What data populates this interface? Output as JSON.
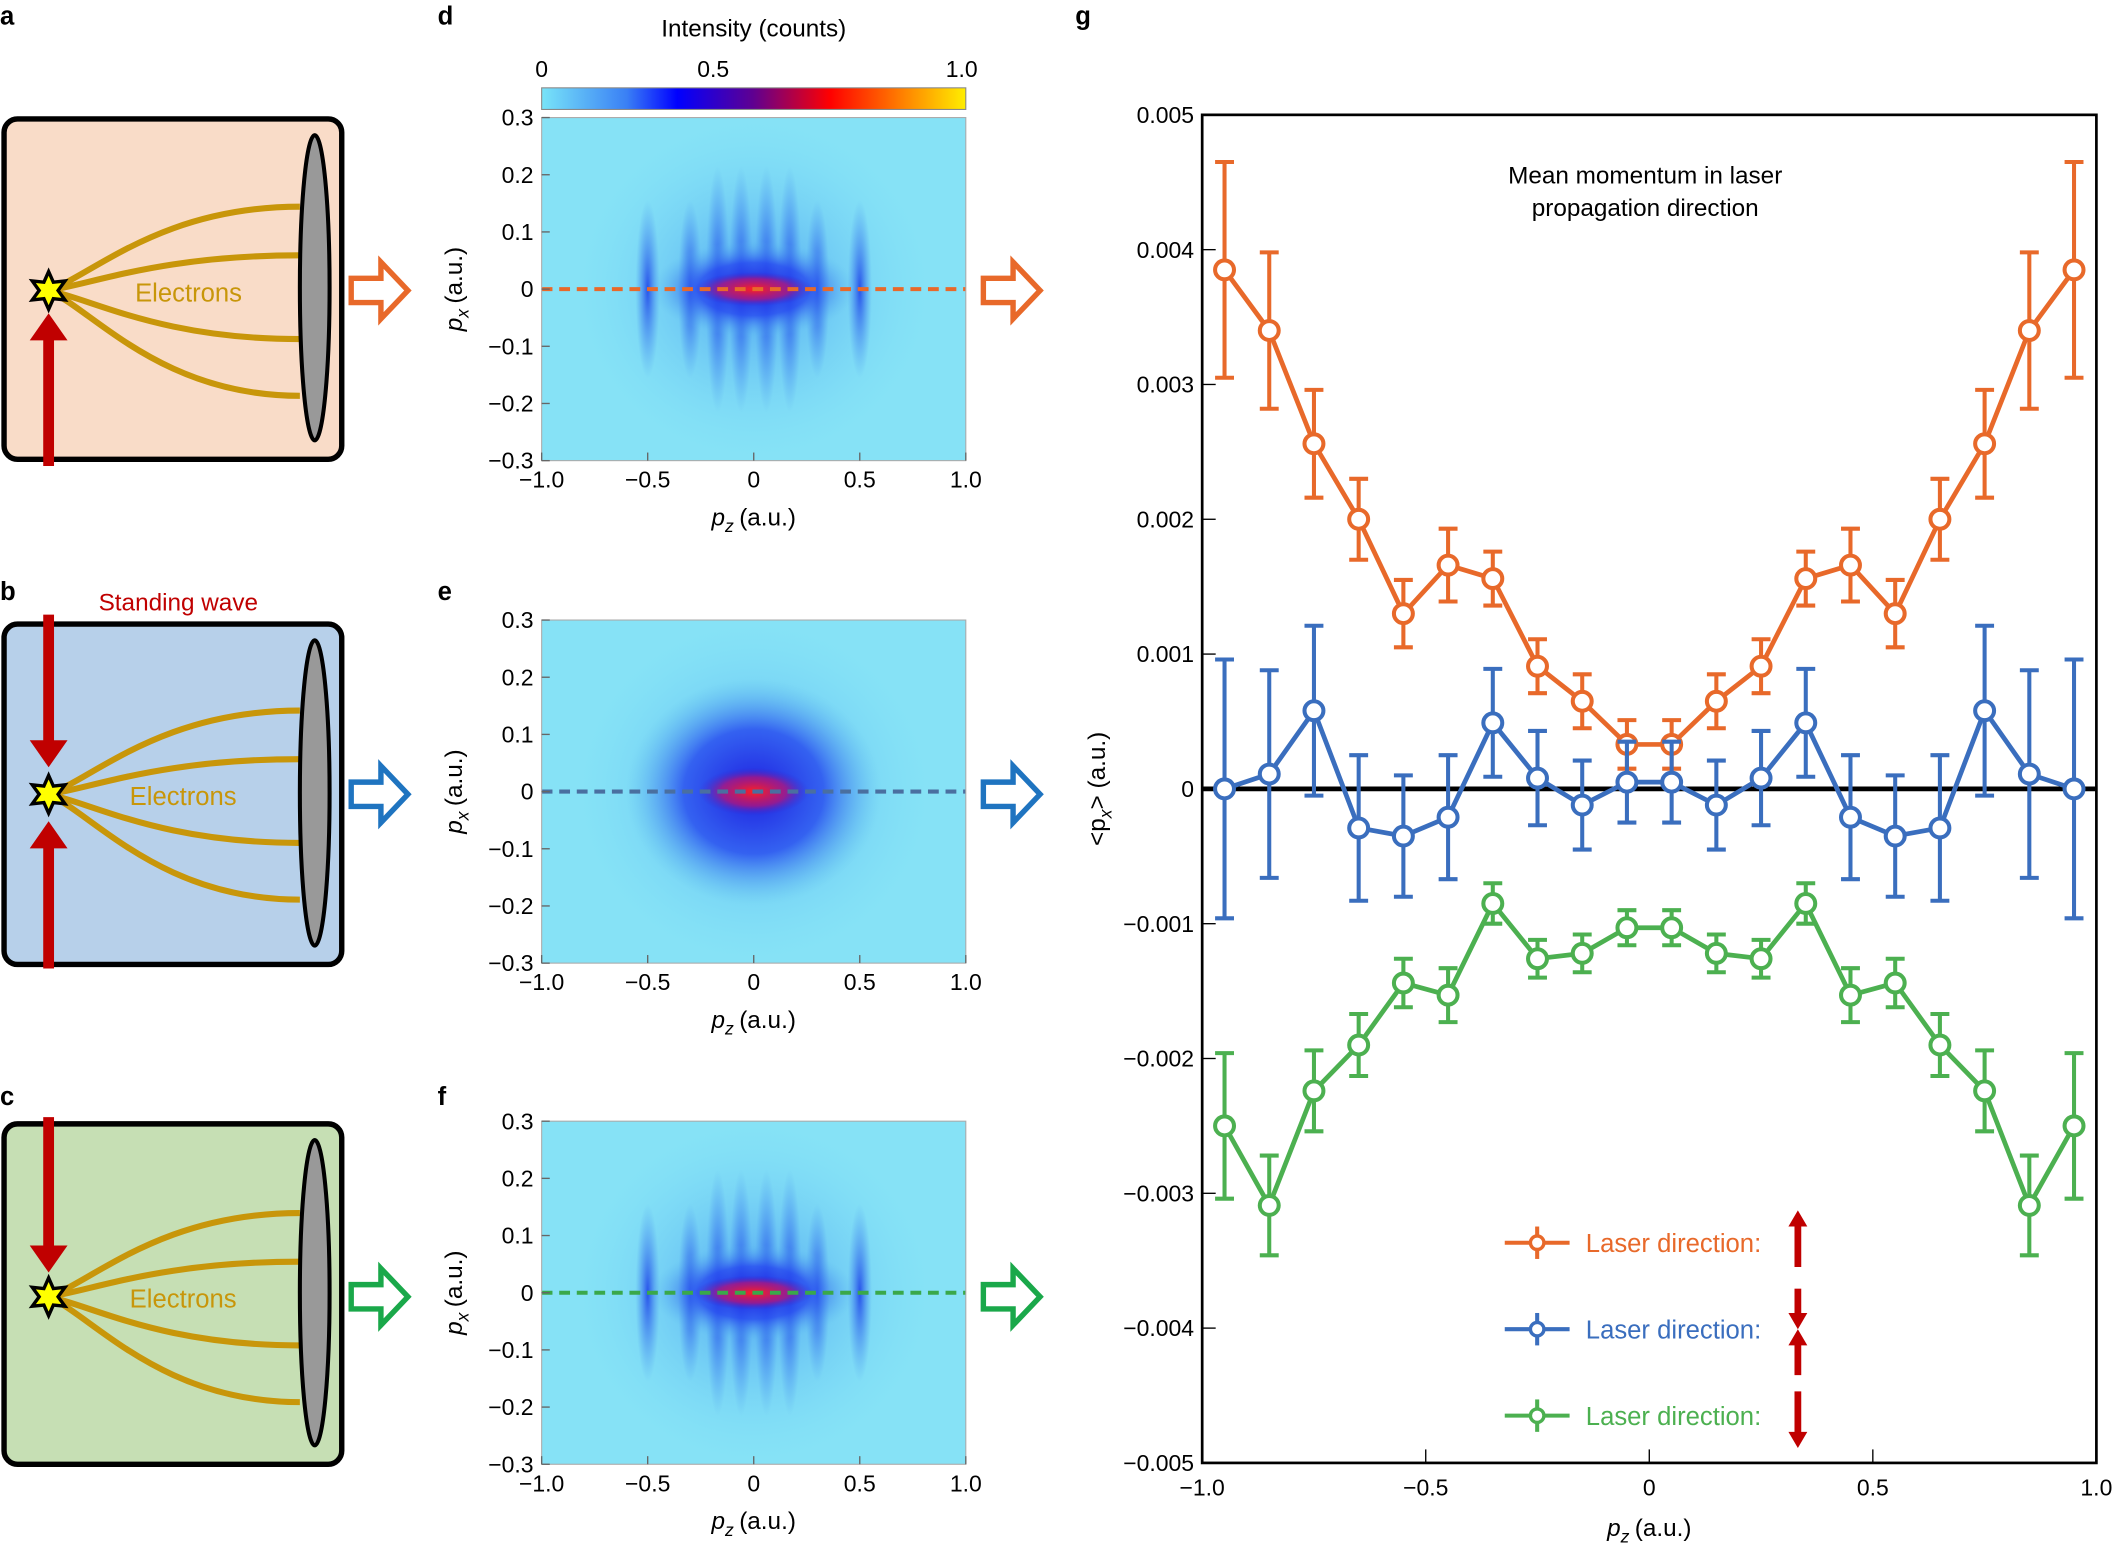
{
  "panel_labels": {
    "a": "a",
    "b": "b",
    "c": "c",
    "d": "d",
    "e": "e",
    "f": "f",
    "g": "g"
  },
  "schematic": {
    "electrons_label": "Electrons",
    "standing_wave_label": "Standing wave",
    "box_colors": {
      "a": "#f9dcc8",
      "b": "#b7d0ea",
      "c": "#c6dfb4"
    },
    "curve_color": "#c8960a",
    "laser_color": "#c00000",
    "arrow_colors": {
      "a": "#e8692a",
      "b": "#1f74c0",
      "c": "#1aa84a"
    }
  },
  "colorbar": {
    "title": "Intensity (counts)",
    "ticks": [
      "0",
      "0.5",
      "1.0"
    ]
  },
  "chart_data": [
    {
      "panel": "d",
      "type": "heatmap",
      "xlabel_var": "p",
      "xlabel_sub": "z",
      "xlabel_unit": "(a.u.)",
      "ylabel_var": "p",
      "ylabel_sub": "x",
      "ylabel_unit": "(a.u.)",
      "xlim": [
        -1.0,
        1.0
      ],
      "ylim": [
        -0.3,
        0.3
      ],
      "xticks": [
        "−1.0",
        "−0.5",
        "0",
        "0.5",
        "1.0"
      ],
      "yticks": [
        "0.3",
        "0.2",
        "0.1",
        "0",
        "−0.1",
        "−0.2",
        "−0.3"
      ],
      "colorscale": [
        "#6fe0f5",
        "#0000ff",
        "#ff0000",
        "#ffee00"
      ],
      "dashed_line_y": 0,
      "dashed_color": "#e8692a",
      "fringes": true
    },
    {
      "panel": "e",
      "type": "heatmap",
      "xlabel_var": "p",
      "xlabel_sub": "z",
      "xlabel_unit": "(a.u.)",
      "ylabel_var": "p",
      "ylabel_sub": "x",
      "ylabel_unit": "(a.u.)",
      "xlim": [
        -1.0,
        1.0
      ],
      "ylim": [
        -0.3,
        0.3
      ],
      "xticks": [
        "−1.0",
        "−0.5",
        "0",
        "0.5",
        "1.0"
      ],
      "yticks": [
        "0.3",
        "0.2",
        "0.1",
        "0",
        "−0.1",
        "−0.2",
        "−0.3"
      ],
      "colorscale": [
        "#6fe0f5",
        "#0000ff",
        "#ff0000",
        "#ffee00"
      ],
      "dashed_line_y": 0,
      "dashed_color": "#4a6fa0",
      "fringes": false
    },
    {
      "panel": "f",
      "type": "heatmap",
      "xlabel_var": "p",
      "xlabel_sub": "z",
      "xlabel_unit": "(a.u.)",
      "ylabel_var": "p",
      "ylabel_sub": "x",
      "ylabel_unit": "(a.u.)",
      "xlim": [
        -1.0,
        1.0
      ],
      "ylim": [
        -0.3,
        0.3
      ],
      "xticks": [
        "−1.0",
        "−0.5",
        "0",
        "0.5",
        "1.0"
      ],
      "yticks": [
        "0.3",
        "0.2",
        "0.1",
        "0",
        "−0.1",
        "−0.2",
        "−0.3"
      ],
      "colorscale": [
        "#6fe0f5",
        "#0000ff",
        "#ff0000",
        "#ffee00"
      ],
      "dashed_line_y": 0,
      "dashed_color": "#3aa84a",
      "fringes": true
    },
    {
      "panel": "g",
      "type": "line",
      "annotation": [
        "Mean momentum in laser",
        "propagation direction"
      ],
      "xlabel_var": "p",
      "xlabel_sub": "z",
      "xlabel_unit": "(a.u.)",
      "ylabel": "<p",
      "ylabel_sub": "x",
      "ylabel_end": "> (a.u.)",
      "xlim": [
        -1.0,
        1.0
      ],
      "ylim": [
        -0.005,
        0.005
      ],
      "xticks": [
        "−1.0",
        "−0.5",
        "0",
        "0.5",
        "1.0"
      ],
      "yticks": [
        "0.005",
        "0.004",
        "0.003",
        "0.002",
        "0.001",
        "0",
        "−0.001",
        "−0.002",
        "−0.003",
        "−0.004",
        "−0.005"
      ],
      "zero_line": true,
      "legend_placement": "bottom-center",
      "x": [
        -0.95,
        -0.85,
        -0.75,
        -0.65,
        -0.55,
        -0.45,
        -0.35,
        -0.25,
        -0.15,
        -0.05,
        0.05,
        0.15,
        0.25,
        0.35,
        0.45,
        0.55,
        0.65,
        0.75,
        0.85,
        0.95
      ],
      "series": [
        {
          "name": "Laser direction:",
          "laser_arrows": "up",
          "color": "#e8692a",
          "values": [
            0.00385,
            0.0034,
            0.00256,
            0.002,
            0.0013,
            0.00166,
            0.00156,
            0.00091,
            0.00065,
            0.00033,
            0.00033,
            0.00065,
            0.00091,
            0.00156,
            0.00166,
            0.0013,
            0.002,
            0.00256,
            0.0034,
            0.00385
          ],
          "errors": [
            0.0008,
            0.00058,
            0.0004,
            0.0003,
            0.00025,
            0.00027,
            0.0002,
            0.0002,
            0.0002,
            0.00018,
            0.00018,
            0.0002,
            0.0002,
            0.0002,
            0.00027,
            0.00025,
            0.0003,
            0.0004,
            0.00058,
            0.0008
          ]
        },
        {
          "name": "Laser direction:",
          "laser_arrows": "down-up",
          "color": "#3a6ebe",
          "values": [
            0,
            0.00011,
            0.00058,
            -0.00029,
            -0.00035,
            -0.00021,
            0.00049,
            8e-05,
            -0.00012,
            5e-05,
            5e-05,
            -0.00012,
            8e-05,
            0.00049,
            -0.00021,
            -0.00035,
            -0.00029,
            0.00058,
            0.00011,
            0
          ],
          "errors": [
            0.00096,
            0.00077,
            0.00063,
            0.00054,
            0.00045,
            0.00046,
            0.0004,
            0.00035,
            0.00033,
            0.0003,
            0.0003,
            0.00033,
            0.00035,
            0.0004,
            0.00046,
            0.00045,
            0.00054,
            0.00063,
            0.00077,
            0.00096
          ]
        },
        {
          "name": "Laser direction:",
          "laser_arrows": "down",
          "color": "#4cb050",
          "values": [
            -0.0025,
            -0.00309,
            -0.00224,
            -0.0019,
            -0.00144,
            -0.00153,
            -0.00085,
            -0.00126,
            -0.00122,
            -0.00103,
            -0.00103,
            -0.00122,
            -0.00126,
            -0.00085,
            -0.00153,
            -0.00144,
            -0.0019,
            -0.00224,
            -0.00309,
            -0.0025
          ],
          "errors": [
            0.00054,
            0.00037,
            0.0003,
            0.00023,
            0.00018,
            0.0002,
            0.00015,
            0.00014,
            0.00014,
            0.00013,
            0.00013,
            0.00014,
            0.00014,
            0.00015,
            0.0002,
            0.00018,
            0.00023,
            0.0003,
            0.00037,
            0.00054
          ]
        }
      ]
    }
  ]
}
